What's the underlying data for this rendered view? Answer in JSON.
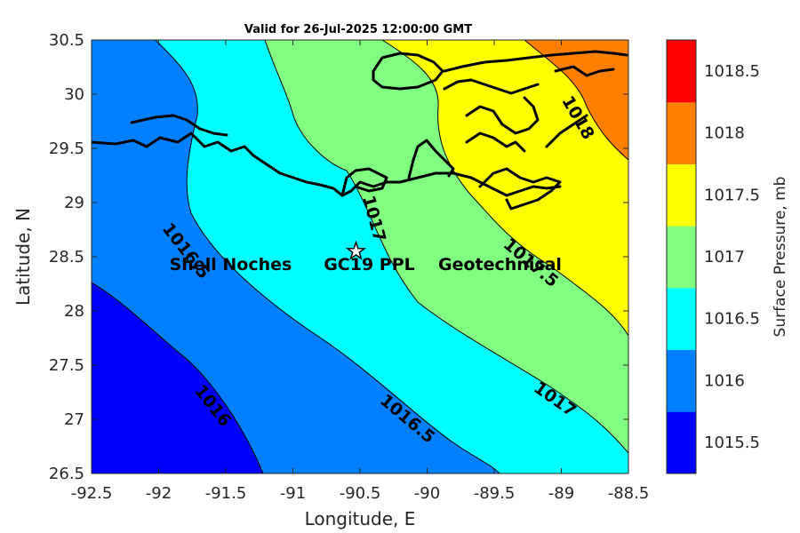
{
  "title": "Valid for 26-Jul-2025 12:00:00 GMT",
  "map": {
    "xlabel": "Longitude, E",
    "ylabel": "Latitude, N",
    "xlim": [
      -92.5,
      -88.5
    ],
    "ylim": [
      26.5,
      30.5
    ],
    "xticks": [
      "-92.5",
      "-92",
      "-91.5",
      "-91",
      "-90.5",
      "-90",
      "-89.5",
      "-89",
      "-88.5"
    ],
    "yticks": [
      "26.5",
      "27",
      "27.5",
      "28",
      "28.5",
      "29",
      "29.5",
      "30",
      "30.5"
    ],
    "contour_labels": [
      {
        "text": "1016",
        "lon": -91.6,
        "lat": 27.12,
        "angle": 52
      },
      {
        "text": "1016.5",
        "lon": -91.8,
        "lat": 28.55,
        "angle": 52
      },
      {
        "text": "1016.5",
        "lon": -90.15,
        "lat": 27.0,
        "angle": 40
      },
      {
        "text": "1017",
        "lon": -90.4,
        "lat": 28.85,
        "angle": 75
      },
      {
        "text": "1017",
        "lon": -89.05,
        "lat": 27.18,
        "angle": 35
      },
      {
        "text": "1017.5",
        "lon": -89.23,
        "lat": 28.44,
        "angle": 40
      },
      {
        "text": "1018",
        "lon": -88.88,
        "lat": 29.78,
        "angle": 60
      }
    ],
    "site": {
      "lon": -90.53,
      "lat": 28.55,
      "icon": "star-icon",
      "labels": [
        "Shell Noches",
        "GC19 PPL",
        "Geotechnical"
      ]
    }
  },
  "colorbar": {
    "label": "Surface Pressure, mb",
    "ticks": [
      "1015.5",
      "1016",
      "1016.5",
      "1017",
      "1017.5",
      "1018",
      "1018.5"
    ],
    "colors": [
      "#0000ff",
      "#0080ff",
      "#00ffff",
      "#80ff80",
      "#ffff00",
      "#ff8000",
      "#ff0000"
    ]
  }
}
